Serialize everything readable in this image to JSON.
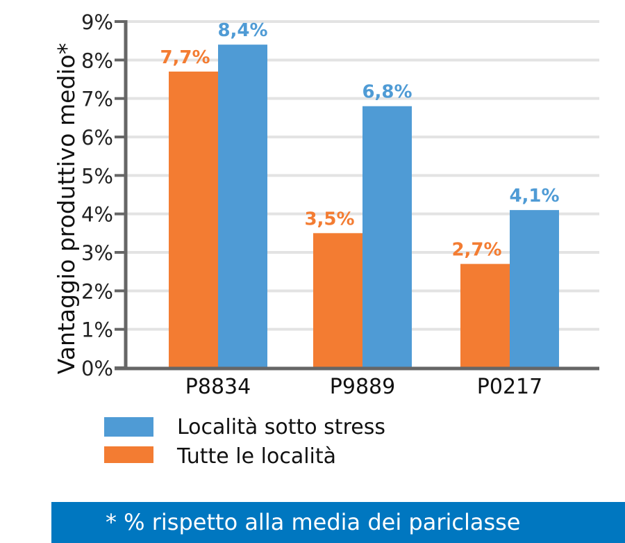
{
  "chart_data": {
    "type": "bar",
    "ylabel": "Vantaggio produttivo medio*",
    "categories": [
      "P8834",
      "P9889",
      "P0217"
    ],
    "yticks": [
      "0%",
      "1%",
      "2%",
      "3%",
      "4%",
      "5%",
      "6%",
      "7%",
      "8%",
      "9%"
    ],
    "ylim": [
      0,
      9
    ],
    "grid": true,
    "series": [
      {
        "name": "Tutte le località",
        "color": "#f37c32",
        "values": [
          7.7,
          3.5,
          2.7
        ],
        "labels": [
          "7,7%",
          "3,5%",
          "2,7%"
        ]
      },
      {
        "name": "Località sotto stress",
        "color": "#4f9bd5",
        "values": [
          8.4,
          6.8,
          4.1
        ],
        "labels": [
          "8,4%",
          "6,8%",
          "4,1%"
        ]
      }
    ],
    "legend": {
      "placement": "bottom-left",
      "items": [
        "Località sotto stress",
        "Tutte le località"
      ]
    },
    "footnote": "* % rispetto alla media dei pariclasse"
  },
  "colors": {
    "axis": "#666666",
    "grid": "#e3e3e3",
    "footer": "#0077c0"
  }
}
